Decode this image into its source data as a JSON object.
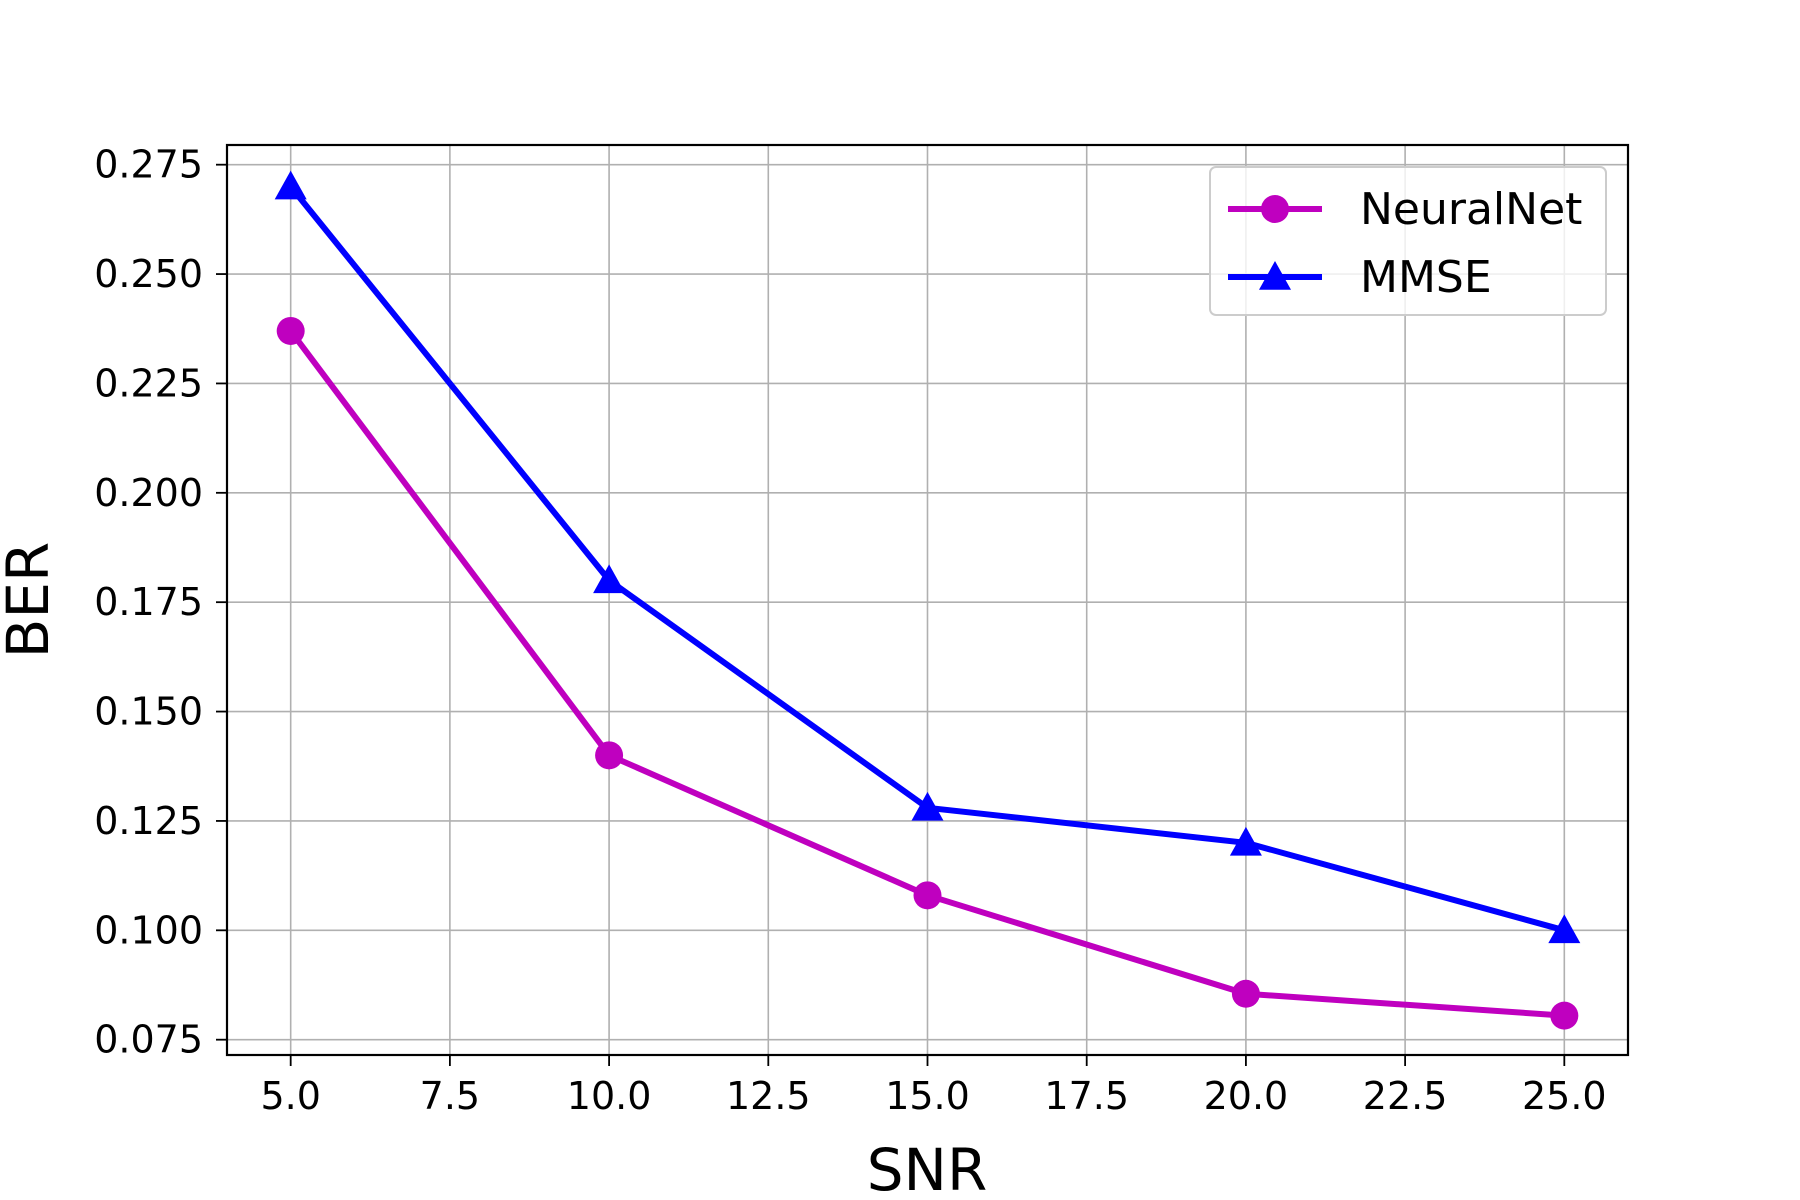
{
  "chart_data": {
    "type": "line",
    "xlabel": "SNR",
    "ylabel": "BER",
    "xlim": [
      4.0,
      26.0
    ],
    "ylim": [
      0.0715,
      0.2795
    ],
    "xticks": [
      5.0,
      7.5,
      10.0,
      12.5,
      15.0,
      17.5,
      20.0,
      22.5,
      25.0
    ],
    "xtick_labels": [
      "5.0",
      "7.5",
      "10.0",
      "12.5",
      "15.0",
      "17.5",
      "20.0",
      "22.5",
      "25.0"
    ],
    "yticks": [
      0.075,
      0.1,
      0.125,
      0.15,
      0.175,
      0.2,
      0.225,
      0.25,
      0.275
    ],
    "ytick_labels": [
      "0.075",
      "0.100",
      "0.125",
      "0.150",
      "0.175",
      "0.200",
      "0.225",
      "0.250",
      "0.275"
    ],
    "grid": true,
    "legend_position": "top-right",
    "x": [
      5,
      10,
      15,
      20,
      25
    ],
    "series": [
      {
        "name": "NeuralNet",
        "color": "#bf00bf",
        "marker": "circle",
        "values": [
          0.237,
          0.14,
          0.108,
          0.0855,
          0.0805
        ]
      },
      {
        "name": "MMSE",
        "color": "#0000ff",
        "marker": "triangle",
        "values": [
          0.27,
          0.18,
          0.128,
          0.12,
          0.1
        ]
      }
    ]
  }
}
